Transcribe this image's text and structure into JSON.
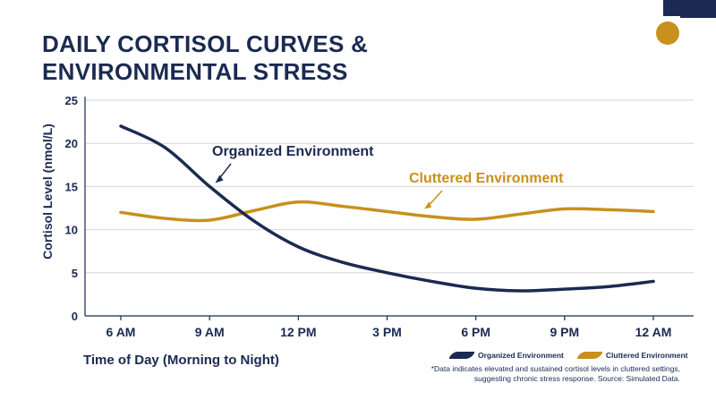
{
  "page": {
    "title_line1": "DAILY CORTISOL CURVES &",
    "title_line2": "ENVIRONMENTAL STRESS",
    "footnote": "*Data indicates elevated and sustained cortisol levels in cluttered settings, suggesting chronic stress response. Source: Simulated Data."
  },
  "colors": {
    "navy": "#1b2a52",
    "gold": "#c8901c",
    "grid": "#d6d6d6",
    "background": "#ffffff"
  },
  "decorations": {
    "corner_square_color": "#1b2a52",
    "corner_circle_color": "#c8901c"
  },
  "chart_data": {
    "type": "line",
    "xlabel": "Time of Day (Morning to Night)",
    "ylabel": "Cortisol Level (nmol/L)",
    "categories": [
      "6 AM",
      "9 AM",
      "12 PM",
      "3 PM",
      "6 PM",
      "9 PM",
      "12 AM"
    ],
    "x_hours": [
      6,
      9,
      12,
      15,
      18,
      21,
      24
    ],
    "ylim": [
      0,
      25
    ],
    "yticks": [
      0,
      5,
      10,
      15,
      20,
      25
    ],
    "grid": true,
    "legend_position": "bottom-right",
    "series": [
      {
        "name": "Organized Environment",
        "color": "#1b2a52",
        "x": [
          6,
          7.5,
          9,
          10.5,
          12,
          13.5,
          15,
          16.5,
          18,
          19.5,
          21,
          22.5,
          24
        ],
        "values": [
          22,
          19.5,
          15,
          11,
          8,
          6.2,
          5,
          4,
          3.2,
          2.9,
          3.1,
          3.4,
          4
        ]
      },
      {
        "name": "Cluttered Environment",
        "color": "#c8901c",
        "x": [
          6,
          7.5,
          9,
          10.5,
          12,
          13.5,
          15,
          16.5,
          18,
          19.5,
          21,
          22.5,
          24
        ],
        "values": [
          12,
          11.3,
          11.1,
          12.2,
          13.2,
          12.7,
          12.1,
          11.5,
          11.2,
          11.8,
          12.4,
          12.3,
          12.1
        ]
      }
    ],
    "annotations": [
      {
        "text": "Organized Environment",
        "series": "Organized Environment",
        "x": 9.1,
        "y": 15.3
      },
      {
        "text": "Cluttered Environment",
        "series": "Cluttered Environment",
        "x": 16.2,
        "y": 12.4
      }
    ]
  }
}
